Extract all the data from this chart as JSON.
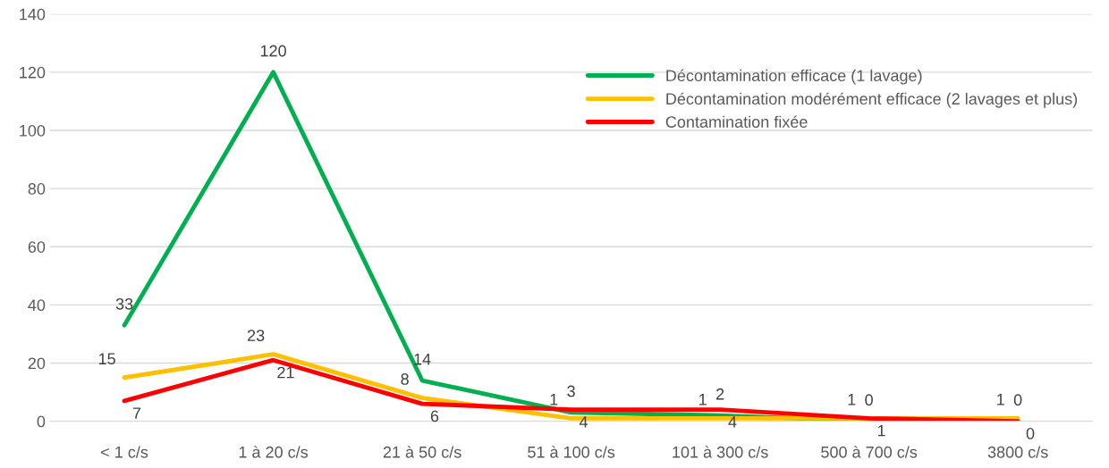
{
  "chart_data": {
    "type": "line",
    "categories": [
      "< 1 c/s",
      "1 à 20 c/s",
      "21 à 50 c/s",
      "51 à 100 c/s",
      "101 à 300 c/s",
      "500 à 700 c/s",
      "3800 c/s"
    ],
    "series": [
      {
        "name": "Décontamination efficace (1 lavage)",
        "color": "#00b050",
        "values": [
          33,
          120,
          14,
          3,
          2,
          0,
          0
        ]
      },
      {
        "name": "Décontamination modérément efficace (2 lavages et plus)",
        "color": "#ffc000",
        "values": [
          15,
          23,
          8,
          1,
          1,
          1,
          1
        ]
      },
      {
        "name": "Contamination fixée",
        "color": "#ff0000",
        "values": [
          7,
          21,
          6,
          4,
          4,
          1,
          0
        ]
      }
    ],
    "ylim": [
      0,
      140
    ],
    "yticks": [
      0,
      20,
      40,
      60,
      80,
      100,
      120,
      140
    ],
    "grid": "y",
    "legend": "top right",
    "marker": "none",
    "line_style": "solid",
    "data_labels": true
  }
}
